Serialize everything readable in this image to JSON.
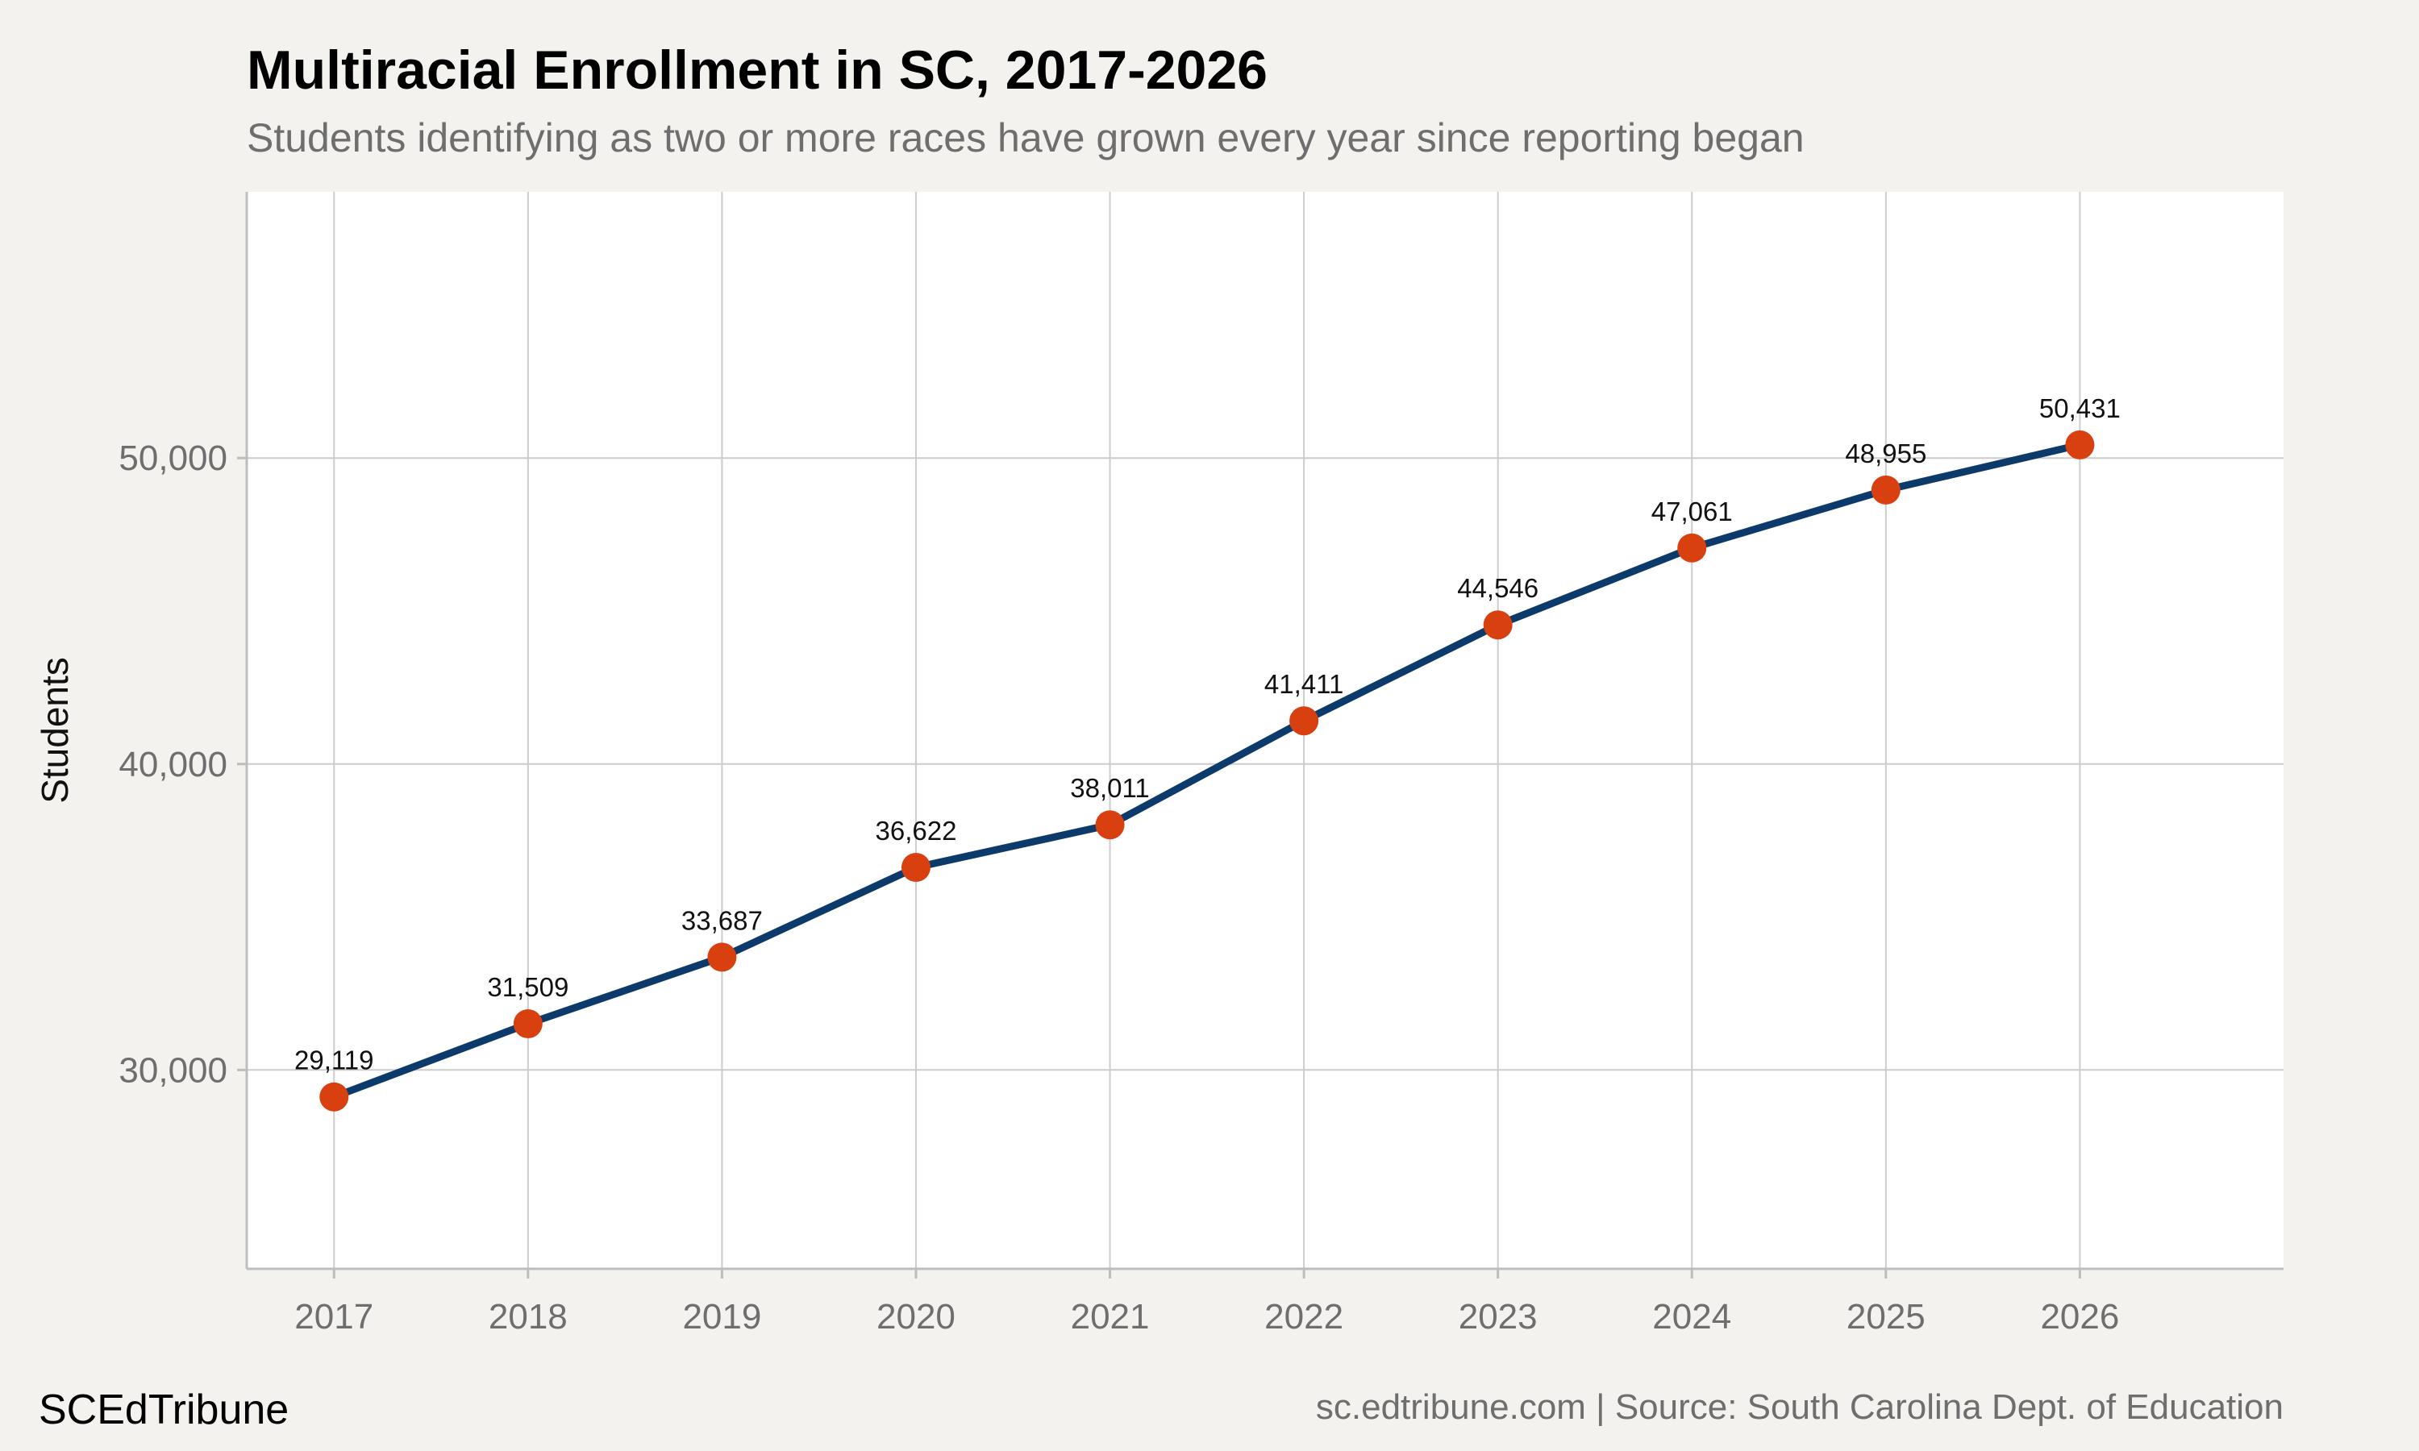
{
  "title": "Multiracial Enrollment in SC, 2017-2026",
  "subtitle": "Students identifying as two or more races have grown every year since reporting began",
  "brand": "SCEdTribune",
  "footer": "sc.edtribune.com | Source: South Carolina Dept. of Education",
  "colors": {
    "background": "#f4f2ee",
    "panel": "#ffffff",
    "grid": "#cccccc",
    "line": "#0b3a6b",
    "marker": "#d9400f"
  },
  "chart_data": {
    "type": "line",
    "x": [
      2017,
      2018,
      2019,
      2020,
      2021,
      2022,
      2023,
      2024,
      2025,
      2026
    ],
    "series": [
      {
        "values": [
          29119,
          31509,
          33687,
          36622,
          38011,
          41411,
          44546,
          47061,
          48955,
          50431
        ],
        "labels": [
          "29,119",
          "31,509",
          "33,687",
          "36,622",
          "38,011",
          "41,411",
          "44,546",
          "47,061",
          "48,955",
          "50,431"
        ]
      }
    ],
    "xlabel": "",
    "ylabel": "Students",
    "ylim": [
      23500,
      58700
    ],
    "xlim": [
      2016.55,
      2027.05
    ],
    "yticks": [
      30000,
      40000,
      50000
    ],
    "ytick_labels": [
      "30,000",
      "40,000",
      "50,000"
    ],
    "grid": true,
    "legend": "none"
  }
}
